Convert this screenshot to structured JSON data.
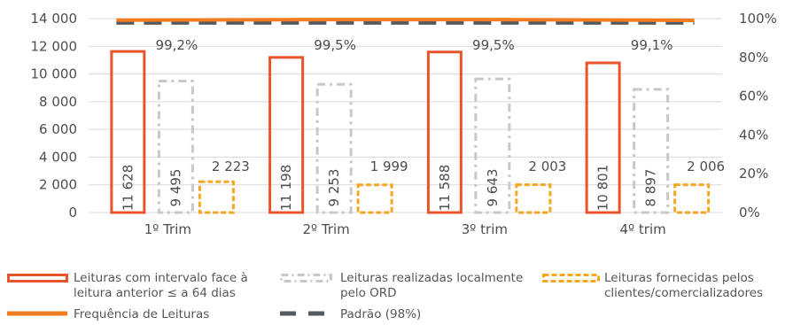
{
  "chart_data": {
    "type": "bar",
    "categories": [
      "1º Trim",
      "2º Trim",
      "3º trim",
      "4º trim"
    ],
    "left_axis": {
      "ylim": [
        0,
        14000
      ],
      "ticks": [
        "0",
        "2 000",
        "4 000",
        "6 000",
        "8 000",
        "10 000",
        "12 000",
        "14 000"
      ]
    },
    "right_axis": {
      "ylim": [
        0,
        100
      ],
      "ticks": [
        "0%",
        "20%",
        "40%",
        "60%",
        "80%",
        "100%"
      ]
    },
    "series": [
      {
        "name": "Leituras com intervalo face à leitura anterior ≤ a 64 dias",
        "type": "bar",
        "values": [
          11628,
          11198,
          11588,
          10801
        ],
        "labels": [
          "11 628",
          "11 198",
          "11 588",
          "10 801"
        ],
        "color": "#e8552a"
      },
      {
        "name": "Leituras realizadas localmente pelo ORD",
        "type": "bar",
        "values": [
          9495,
          9253,
          9643,
          8897
        ],
        "labels": [
          "9 495",
          "9 253",
          "9 643",
          "8 897"
        ],
        "color": "#c8c8c8"
      },
      {
        "name": "Leituras fornecidas pelos clientes/comercializadores",
        "type": "bar",
        "values": [
          2223,
          1999,
          2003,
          2006
        ],
        "labels": [
          "2 223",
          "1 999",
          "2 003",
          "2 006"
        ],
        "color": "#f5a623"
      },
      {
        "name": "Frequência de Leituras",
        "type": "line",
        "axis": "right",
        "values": [
          99.2,
          99.5,
          99.5,
          99.1
        ],
        "labels": [
          "99,2%",
          "99,5%",
          "99,5%",
          "99,1%"
        ],
        "color": "#f47c20"
      },
      {
        "name": "Padrão (98%)",
        "type": "line",
        "axis": "right",
        "values": [
          98,
          98,
          98,
          98
        ],
        "color": "#555a5f"
      }
    ],
    "legend": {
      "items": [
        "Leituras com intervalo face à\nleitura anterior ≤ a 64 dias",
        "Leituras realizadas localmente\npelo ORD",
        "Leituras fornecidas pelos\nclientes/comercializadores",
        "Frequência de Leituras",
        "Padrão (98%)"
      ],
      "placement": "bottom"
    },
    "grid": "horizontal"
  }
}
